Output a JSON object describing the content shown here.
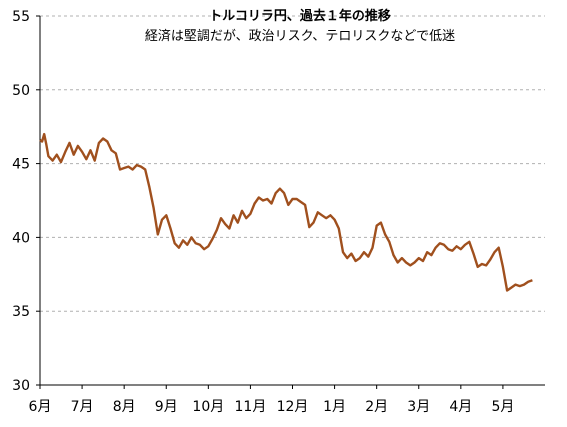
{
  "chart_data": {
    "type": "line",
    "title": "トルコリラ円、過去１年の推移",
    "subtitle": "経済は堅調だが、政治リスク、テロリスクなどで低迷",
    "xlabel": "",
    "ylabel": "",
    "ylim": [
      30,
      55
    ],
    "yticks": [
      "30",
      "35",
      "40",
      "45",
      "50",
      "55"
    ],
    "xticks": [
      "6月",
      "7月",
      "8月",
      "9月",
      "10月",
      "11月",
      "12月",
      "1月",
      "2月",
      "3月",
      "4月",
      "5月"
    ],
    "grid": "horizontal dashed",
    "line_color": "#A0501E",
    "series": [
      {
        "x": [
          0.0,
          0.05,
          0.1,
          0.15,
          0.2,
          0.3,
          0.4,
          0.5,
          0.6,
          0.7,
          0.8,
          0.9,
          1.0,
          1.1,
          1.2,
          1.3,
          1.4,
          1.5,
          1.6,
          1.7,
          1.8,
          1.9,
          2.0,
          2.1,
          2.2,
          2.3,
          2.4,
          2.5,
          2.6,
          2.7,
          2.8,
          2.9,
          3.0,
          3.1,
          3.2,
          3.3,
          3.4,
          3.5,
          3.6,
          3.7,
          3.8,
          3.9,
          4.0,
          4.1,
          4.2,
          4.3,
          4.4,
          4.5,
          4.6,
          4.7,
          4.8,
          4.9,
          5.0,
          5.1,
          5.2,
          5.3,
          5.4,
          5.5,
          5.6,
          5.7,
          5.8,
          5.9,
          6.0,
          6.1,
          6.2,
          6.3,
          6.4,
          6.5,
          6.6,
          6.7,
          6.8,
          6.9,
          7.0,
          7.1,
          7.2,
          7.3,
          7.4,
          7.5,
          7.6,
          7.7,
          7.8,
          7.9,
          8.0,
          8.1,
          8.2,
          8.3,
          8.4,
          8.5,
          8.6,
          8.7,
          8.8,
          8.9,
          9.0,
          9.1,
          9.2,
          9.3,
          9.4,
          9.5,
          9.6,
          9.7,
          9.8,
          9.9,
          10.0,
          10.1,
          10.2,
          10.3,
          10.4,
          10.5,
          10.6,
          10.7,
          10.8,
          10.9,
          11.0,
          11.1,
          11.2,
          11.3,
          11.4,
          11.5,
          11.6,
          11.7
        ],
        "values": [
          46.6,
          46.5,
          47.0,
          46.3,
          45.5,
          45.2,
          45.6,
          45.1,
          45.8,
          46.4,
          45.6,
          46.2,
          45.8,
          45.3,
          45.9,
          45.2,
          46.4,
          46.7,
          46.5,
          45.9,
          45.7,
          44.6,
          44.7,
          44.8,
          44.6,
          44.9,
          44.8,
          44.6,
          43.4,
          42.0,
          40.2,
          41.2,
          41.5,
          40.6,
          39.6,
          39.3,
          39.8,
          39.5,
          40.0,
          39.6,
          39.5,
          39.2,
          39.4,
          39.9,
          40.5,
          41.3,
          40.9,
          40.6,
          41.5,
          41.0,
          41.8,
          41.3,
          41.6,
          42.3,
          42.7,
          42.5,
          42.6,
          42.3,
          43.0,
          43.3,
          43.0,
          42.2,
          42.6,
          42.6,
          42.4,
          42.2,
          40.7,
          41.0,
          41.7,
          41.5,
          41.3,
          41.5,
          41.2,
          40.6,
          39.0,
          38.6,
          38.9,
          38.4,
          38.6,
          39.0,
          38.7,
          39.3,
          40.8,
          41.0,
          40.2,
          39.7,
          38.8,
          38.3,
          38.6,
          38.3,
          38.1,
          38.3,
          38.6,
          38.4,
          39.0,
          38.8,
          39.3,
          39.6,
          39.5,
          39.2,
          39.1,
          39.4,
          39.2,
          39.5,
          39.7,
          38.9,
          38.0,
          38.2,
          38.1,
          38.5,
          39.0,
          39.3,
          38.0,
          36.4,
          36.6,
          36.8,
          36.7,
          36.8,
          37.0,
          37.1
        ],
        "note": "x axis in months from start of June; 12 monthly tick labels"
      }
    ]
  }
}
